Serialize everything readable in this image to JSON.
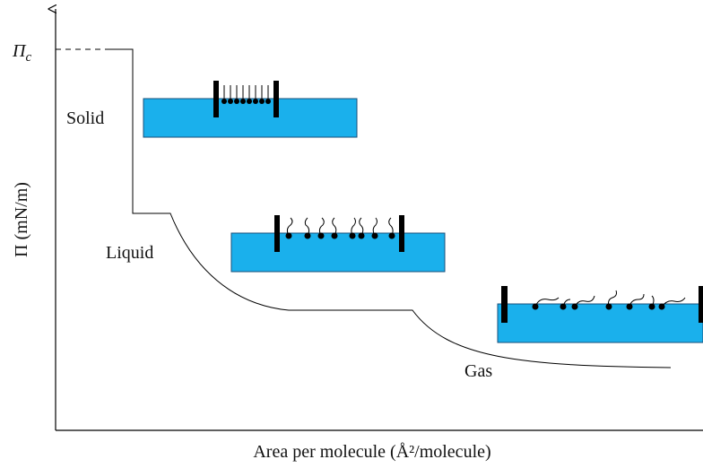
{
  "axes": {
    "y_label": "Π (mN/m)",
    "x_label": "Area per molecule (Å²/molecule)"
  },
  "pressure_mark": {
    "symbol": "Π",
    "subscript": "c"
  },
  "phases": {
    "solid": "Solid",
    "liquid": "Liquid",
    "gas": "Gas"
  }
}
